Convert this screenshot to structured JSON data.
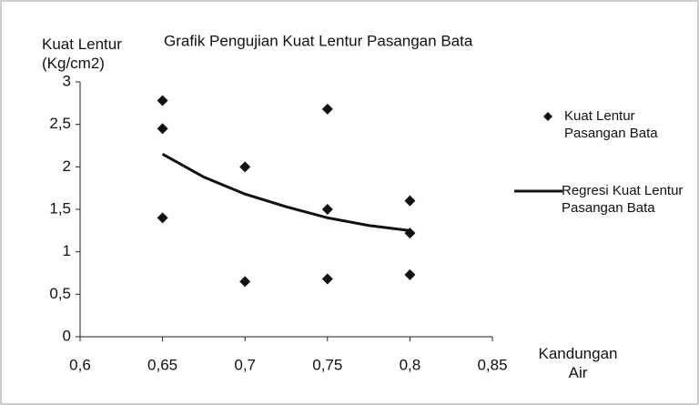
{
  "chart_data": {
    "type": "scatter",
    "title": "Grafik Pengujian Kuat Lentur Pasangan Bata",
    "y_label": "Kuat Lentur (Kg/cm2)",
    "x_label": "Kandungan Air",
    "xlim": [
      0.6,
      0.85
    ],
    "ylim": [
      0,
      3
    ],
    "xticks": [
      {
        "value": 0.6,
        "label": "0,6"
      },
      {
        "value": 0.65,
        "label": "0,65"
      },
      {
        "value": 0.7,
        "label": "0,7"
      },
      {
        "value": 0.75,
        "label": "0,75"
      },
      {
        "value": 0.8,
        "label": "0,8"
      },
      {
        "value": 0.85,
        "label": "0,85"
      }
    ],
    "yticks": [
      0,
      {
        "value": 0.5,
        "label": "0,5"
      },
      1,
      {
        "value": 1.5,
        "label": "1,5"
      },
      2,
      {
        "value": 2.5,
        "label": "2,5"
      },
      3
    ],
    "legend": "right",
    "series": [
      {
        "name": "Kuat Lentur Pasangan Bata",
        "type": "scatter",
        "color": "#111111",
        "x": [
          0.65,
          0.65,
          0.65,
          0.7,
          0.7,
          0.75,
          0.75,
          0.75,
          0.8,
          0.8,
          0.8
        ],
        "values": [
          2.78,
          2.45,
          1.4,
          2.0,
          0.65,
          2.68,
          1.5,
          0.68,
          1.6,
          1.22,
          0.73
        ]
      },
      {
        "name": "Regresi Kuat Lentur Pasangan Bata",
        "type": "line",
        "color": "#111111",
        "x": [
          0.65,
          0.675,
          0.7,
          0.725,
          0.75,
          0.775,
          0.8
        ],
        "values": [
          2.15,
          1.88,
          1.68,
          1.53,
          1.4,
          1.31,
          1.25
        ]
      }
    ]
  }
}
